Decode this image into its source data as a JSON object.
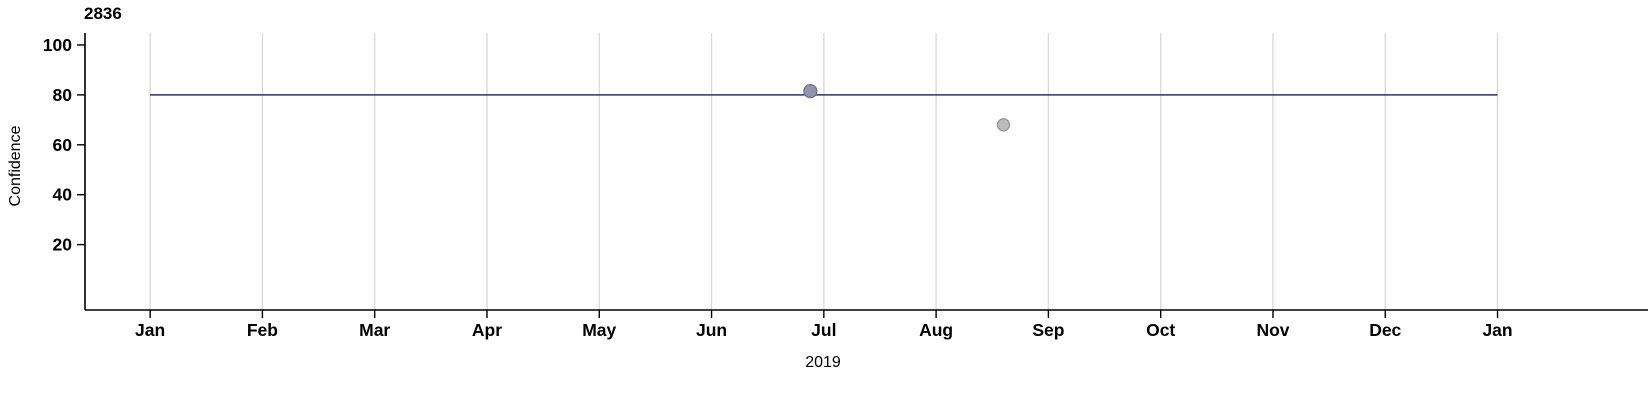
{
  "chart_data": {
    "type": "scatter",
    "title": "2836",
    "xlabel": "2019",
    "ylabel": "Confidence",
    "x_tick_labels": [
      "Jan",
      "Feb",
      "Mar",
      "Apr",
      "May",
      "Jun",
      "Jul",
      "Aug",
      "Sep",
      "Oct",
      "Nov",
      "Dec",
      "Jan"
    ],
    "x_tick_positions": [
      0,
      1,
      2,
      3,
      4,
      5,
      6,
      7,
      8,
      9,
      10,
      11,
      12
    ],
    "y_ticks": [
      20,
      40,
      60,
      80,
      100
    ],
    "xlim": [
      -0.58,
      13.34
    ],
    "ylim": [
      -6.2,
      104.8
    ],
    "grid": "vertical-only",
    "legend": "none",
    "colors": {
      "gridline": "#d8d8d8",
      "axis": "#000000",
      "tick_label": "#000000",
      "background": "#ffffff"
    },
    "hline": {
      "y": 80,
      "x_start": 0,
      "x_end": 12,
      "color": "#2a3270",
      "width": 1.5
    },
    "points": [
      {
        "x": 5.88,
        "y": 81.5,
        "fill": "#9094ad",
        "stroke": "#6f7390",
        "radius": 6.5
      },
      {
        "x": 7.6,
        "y": 68.0,
        "fill": "#bcbcbc",
        "stroke": "#959595",
        "radius": 6
      }
    ]
  }
}
